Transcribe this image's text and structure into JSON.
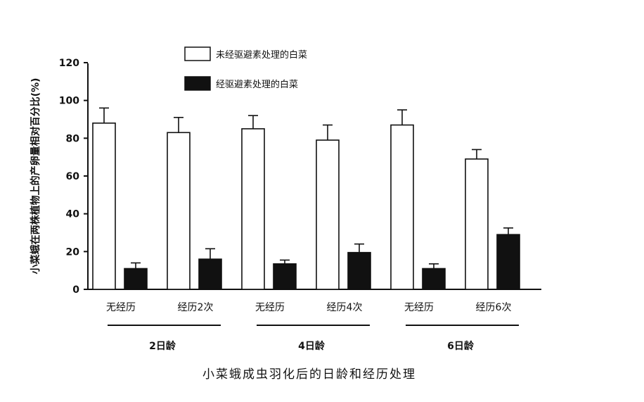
{
  "chart_data": {
    "type": "bar",
    "xlabel": "小菜蛾成虫羽化后的日龄和经历处理",
    "ylabel": "小菜蛾在两株植物上的产卵量相对百分比(%)",
    "ylim": [
      0,
      120
    ],
    "yticks": [
      0,
      20,
      40,
      60,
      80,
      100,
      120
    ],
    "grid": false,
    "legend_position": "top-center",
    "categories": [
      "无经历",
      "经历2次",
      "无经历",
      "经历4次",
      "无经历",
      "经历6次"
    ],
    "groups": [
      {
        "label": "2日龄",
        "categories": [
          0,
          1
        ]
      },
      {
        "label": "4日龄",
        "categories": [
          2,
          3
        ]
      },
      {
        "label": "6日龄",
        "categories": [
          4,
          5
        ]
      }
    ],
    "series": [
      {
        "name": "未经驱避素处理的白菜",
        "color": "#ffffff",
        "values": [
          88,
          83,
          85,
          79,
          87,
          69
        ],
        "errors": [
          8,
          8,
          7,
          8,
          8,
          5
        ]
      },
      {
        "name": "经驱避素处理的白菜",
        "color": "#111111",
        "values": [
          11,
          16,
          13.5,
          19.5,
          11,
          29
        ],
        "errors": [
          3,
          5.5,
          2,
          4.5,
          2.5,
          3.5
        ]
      }
    ]
  }
}
